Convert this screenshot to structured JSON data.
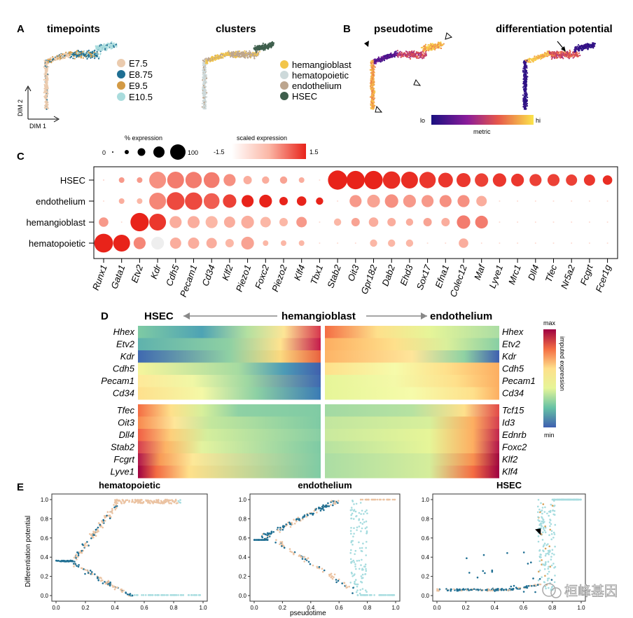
{
  "panel_letters": {
    "a": "A",
    "b": "B",
    "c": "C",
    "d": "D",
    "e": "E"
  },
  "panel_a": {
    "timepoints_title": "timepoints",
    "clusters_title": "clusters",
    "axis_y": "DIM 2",
    "axis_x": "DIM 1",
    "timepoint_legend": [
      {
        "label": "E7.5",
        "color": "#EBCBAE"
      },
      {
        "label": "E8.75",
        "color": "#1F6F93"
      },
      {
        "label": "E9.5",
        "color": "#D39A45"
      },
      {
        "label": "E10.5",
        "color": "#A9DCDD"
      }
    ],
    "cluster_legend": [
      {
        "label": "hemangioblast",
        "color": "#F2C54A"
      },
      {
        "label": "hematopoietic",
        "color": "#CDD9DA"
      },
      {
        "label": "endothelium",
        "color": "#BCA58E"
      },
      {
        "label": "HSEC",
        "color": "#3E5E4C"
      }
    ]
  },
  "panel_b": {
    "pseudotime_title": "pseudotime",
    "diffpot_title": "differentiation potential",
    "colorbar_lo": "lo",
    "colorbar_hi": "hi",
    "colorbar_label": "metric"
  },
  "chart_data": [
    {
      "type": "dotplot",
      "panel": "C",
      "size_legend_title": "% expression",
      "size_legend_min": "0",
      "size_legend_max": "100",
      "color_legend_title": "scaled expression",
      "color_legend_min": "-1.5",
      "color_legend_max": "1.5",
      "rows": [
        "HSEC",
        "endothelium",
        "hemangioblast",
        "hematopoietic"
      ],
      "genes": [
        "Runx1",
        "Gata1",
        "Etv2",
        "Kdr",
        "Cdh5",
        "Pecam1",
        "Cd34",
        "Klf2",
        "Piezo1",
        "Foxc2",
        "Piezo2",
        "Klf4",
        "Tbx1",
        "Stab2",
        "Oit3",
        "Gpr182",
        "Dab2",
        "Ehd3",
        "Sox17",
        "Efna1",
        "Colec12",
        "Maf",
        "Lyve1",
        "Mrc1",
        "Dll4",
        "Tfec",
        "Nr5a2",
        "Fcgrt",
        "Fcer1g"
      ],
      "pct": [
        [
          0,
          5,
          5,
          75,
          75,
          70,
          65,
          35,
          15,
          10,
          10,
          5,
          0,
          100,
          90,
          90,
          80,
          75,
          70,
          55,
          50,
          45,
          45,
          40,
          35,
          35,
          30,
          30,
          20
        ],
        [
          0,
          5,
          5,
          75,
          85,
          80,
          65,
          45,
          35,
          40,
          15,
          20,
          10,
          0,
          35,
          40,
          45,
          40,
          35,
          35,
          35,
          25,
          0,
          0,
          0,
          0,
          0,
          0,
          0
        ],
        [
          20,
          0,
          90,
          75,
          35,
          35,
          35,
          30,
          40,
          25,
          15,
          25,
          0,
          10,
          15,
          20,
          15,
          10,
          15,
          15,
          45,
          40,
          0,
          0,
          0,
          0,
          0,
          0,
          0
        ],
        [
          95,
          75,
          35,
          40,
          30,
          30,
          25,
          15,
          40,
          5,
          5,
          5,
          0,
          0,
          0,
          10,
          10,
          10,
          0,
          0,
          20,
          0,
          0,
          0,
          0,
          0,
          0,
          0,
          0
        ]
      ],
      "scaled": [
        [
          0.2,
          0.3,
          0.3,
          0.4,
          0.6,
          0.6,
          0.6,
          0.4,
          0.1,
          0.1,
          0.2,
          0.1,
          0,
          1.5,
          1.5,
          1.5,
          1.4,
          1.4,
          1.3,
          1.3,
          1.3,
          1.2,
          1.3,
          1.3,
          1.2,
          1.2,
          1.2,
          1.3,
          1.4
        ],
        [
          0,
          0.1,
          0,
          0.5,
          1.1,
          1.1,
          0.9,
          1.2,
          1.5,
          1.5,
          1.5,
          1.5,
          1.5,
          0,
          0.3,
          0.2,
          0.4,
          0.3,
          0.3,
          0.4,
          0.4,
          0.1,
          0,
          0,
          0,
          0,
          0,
          0,
          0
        ],
        [
          0.3,
          0,
          1.5,
          1.3,
          0.1,
          0.1,
          0,
          0.1,
          0.1,
          0,
          0,
          0.3,
          0,
          0,
          0.2,
          0.1,
          0.1,
          0.1,
          0.2,
          0.1,
          0.6,
          0.6,
          0,
          0,
          0,
          0,
          0,
          0,
          0
        ],
        [
          1.5,
          1.5,
          0.5,
          -1.5,
          0.1,
          0.1,
          0.1,
          0,
          0.2,
          0,
          0,
          0,
          0,
          0,
          0,
          0,
          0,
          0,
          0,
          0,
          0.1,
          0,
          0,
          0,
          0,
          0,
          0,
          0,
          0
        ]
      ]
    },
    {
      "type": "heatmap",
      "panel": "D",
      "left_label": "HSEC",
      "center_label": "hemangioblast",
      "right_label": "endothelium",
      "colorbar_max": "max",
      "colorbar_min": "min",
      "colorbar_title": "imputed expression",
      "left_genes": [
        "Hhex",
        "Etv2",
        "Kdr",
        "Cdh5",
        "Pecam1",
        "Cd34",
        "Tfec",
        "Oit3",
        "Dll4",
        "Stab2",
        "Fcgrt",
        "Lyve1"
      ],
      "right_genes": [
        "Hhex",
        "Etv2",
        "Kdr",
        "Cdh5",
        "Pecam1",
        "Cd34",
        "Tcf15",
        "Id3",
        "Ednrb",
        "Foxc2",
        "Klf2",
        "Klf4"
      ]
    },
    {
      "type": "scatter",
      "panel": "E",
      "ylabel": "Differentiation potential",
      "xlabel": "pseudotime",
      "xlim": [
        0,
        1
      ],
      "ylim": [
        0,
        1
      ],
      "x_ticks": [
        "0.0",
        "0.2",
        "0.4",
        "0.6",
        "0.8",
        "1.0"
      ],
      "y_ticks": [
        "0.0",
        "0.2",
        "0.4",
        "0.6",
        "0.8",
        "1.0"
      ],
      "subplots": [
        "hematopoietic",
        "endothelium",
        "HSEC"
      ]
    }
  ],
  "watermark": "桓峰基因"
}
